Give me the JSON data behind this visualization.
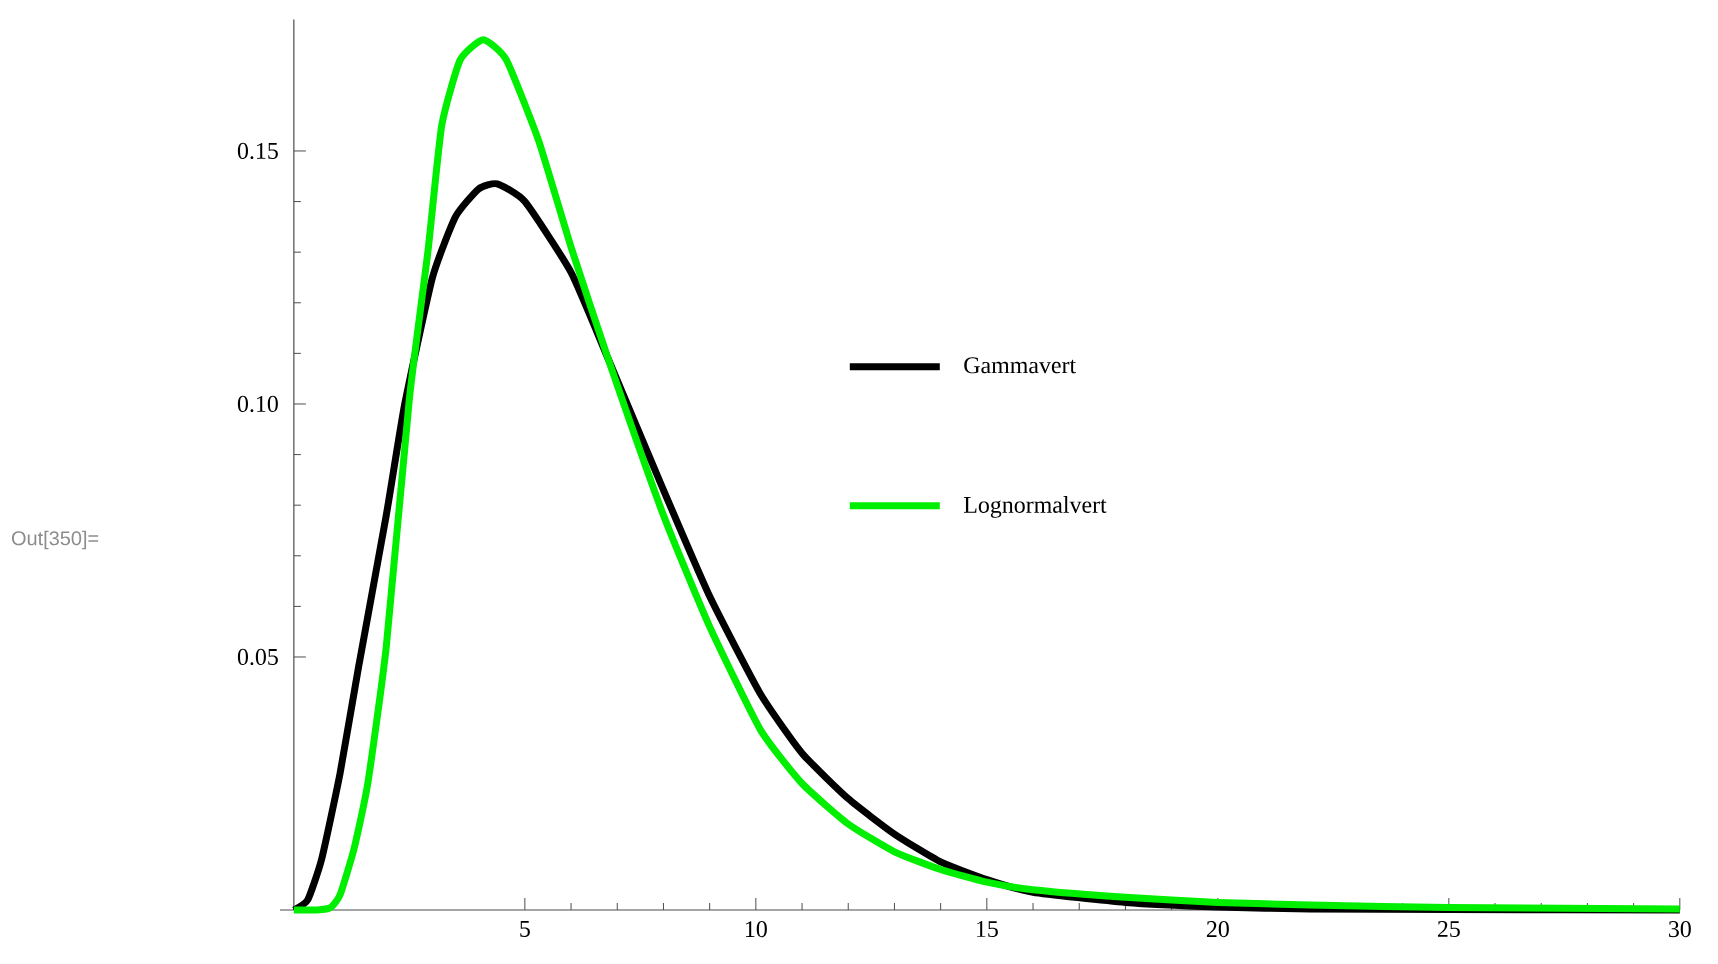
{
  "chart_data": {
    "type": "line",
    "xlim": [
      -0.3,
      30
    ],
    "ylim": [
      0,
      0.176
    ],
    "xticks": [
      5,
      10,
      15,
      20,
      25,
      30
    ],
    "yticks": [
      0.05,
      {
        "value": 0.1,
        "label": "0.10"
      },
      0.15
    ],
    "legend": "right",
    "grid": false,
    "marker": "none",
    "line_style": "solid",
    "annotations": [
      "Out[350]="
    ],
    "series": [
      {
        "name": "Gammavert",
        "color": "#000000",
        "x": [
          0,
          0.3,
          0.6,
          1,
          1.4,
          2,
          2.4,
          3,
          3.5,
          4,
          4.4,
          5,
          6,
          6.8,
          8,
          9,
          10.1,
          11,
          12,
          13,
          14,
          15,
          16,
          18,
          20,
          22,
          25,
          30
        ],
        "values": [
          0,
          0.002,
          0.01,
          0.027,
          0.048,
          0.078,
          0.1,
          0.125,
          0.137,
          0.1425,
          0.1435,
          0.14,
          0.126,
          0.109,
          0.083,
          0.062,
          0.0427,
          0.031,
          0.022,
          0.015,
          0.0095,
          0.006,
          0.0035,
          0.0015,
          0.0006,
          0.0002,
          0.0001,
          0
        ]
      },
      {
        "name": "Lognormalvert",
        "color": "#00ee00",
        "x": [
          0,
          0.5,
          0.8,
          1,
          1.3,
          1.6,
          2,
          2.5,
          2.9,
          3.2,
          3.6,
          4.1,
          4.6,
          5.3,
          6,
          6.8,
          8,
          9,
          10.1,
          11,
          12,
          13,
          14,
          15,
          16,
          18,
          20,
          22,
          25,
          30
        ],
        "values": [
          0,
          0,
          0.0005,
          0.003,
          0.012,
          0.025,
          0.052,
          0.101,
          0.13,
          0.155,
          0.168,
          0.172,
          0.168,
          0.152,
          0.131,
          0.109,
          0.078,
          0.056,
          0.0356,
          0.025,
          0.017,
          0.0115,
          0.008,
          0.0055,
          0.004,
          0.0025,
          0.0015,
          0.001,
          0.0005,
          0.0002
        ]
      }
    ]
  }
}
